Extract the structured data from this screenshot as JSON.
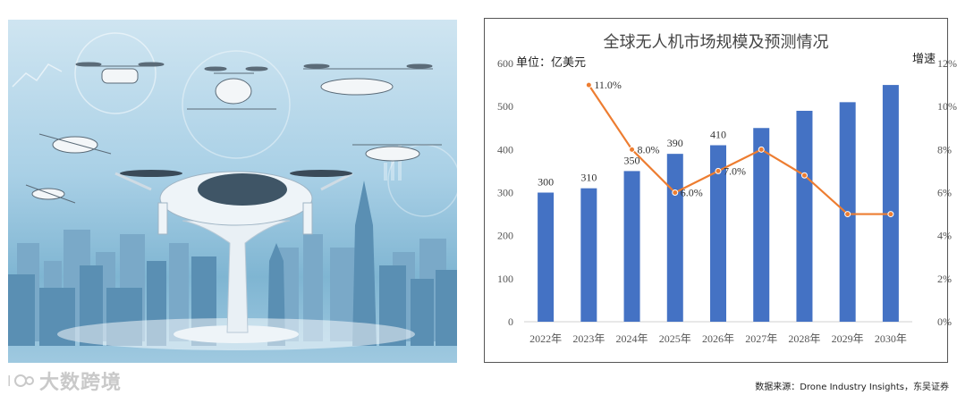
{
  "illustration": {
    "description_icon": "drone-city-illustration",
    "colors": {
      "sky_top": "#cfe5f1",
      "sky_bottom": "#7fb5d2",
      "building": "#5a8fb3",
      "pod": "#eef4f8"
    }
  },
  "watermark": {
    "text": "大数跨境"
  },
  "chart": {
    "title": "全球无人机市场规模及预测情况",
    "unit_left": "单位：亿美元",
    "unit_right": "增速"
  },
  "source": "数据来源：Drone Industry Insights，东吴证券",
  "chart_data": {
    "type": "bar",
    "categories": [
      "2022年",
      "2023年",
      "2024年",
      "2025年",
      "2026年",
      "2027年",
      "2028年",
      "2029年",
      "2030年"
    ],
    "series": [
      {
        "type": "bar",
        "axis": "left",
        "color": "#4472c4",
        "values": [
          300,
          310,
          350,
          390,
          410,
          450,
          490,
          510,
          550
        ],
        "labels": [
          "300",
          "310",
          "350",
          "390",
          "410",
          "",
          "",
          "",
          ""
        ]
      },
      {
        "type": "line",
        "axis": "right",
        "color": "#ed7d31",
        "values": [
          null,
          11.0,
          8.0,
          6.0,
          7.0,
          8.0,
          6.8,
          5.0,
          5.0
        ],
        "labels": [
          "",
          "11.0%",
          "8.0%",
          "6.0%",
          "7.0%",
          "",
          "",
          "",
          ""
        ]
      }
    ],
    "ylim_left": [
      0,
      600
    ],
    "yticks_left": [
      "0",
      "100",
      "200",
      "300",
      "400",
      "500",
      "600"
    ],
    "ylim_right": [
      0,
      12
    ],
    "yticks_right": [
      "0%",
      "2%",
      "4%",
      "6%",
      "8%",
      "10%",
      "12%"
    ],
    "grid": false,
    "legend": "none"
  }
}
